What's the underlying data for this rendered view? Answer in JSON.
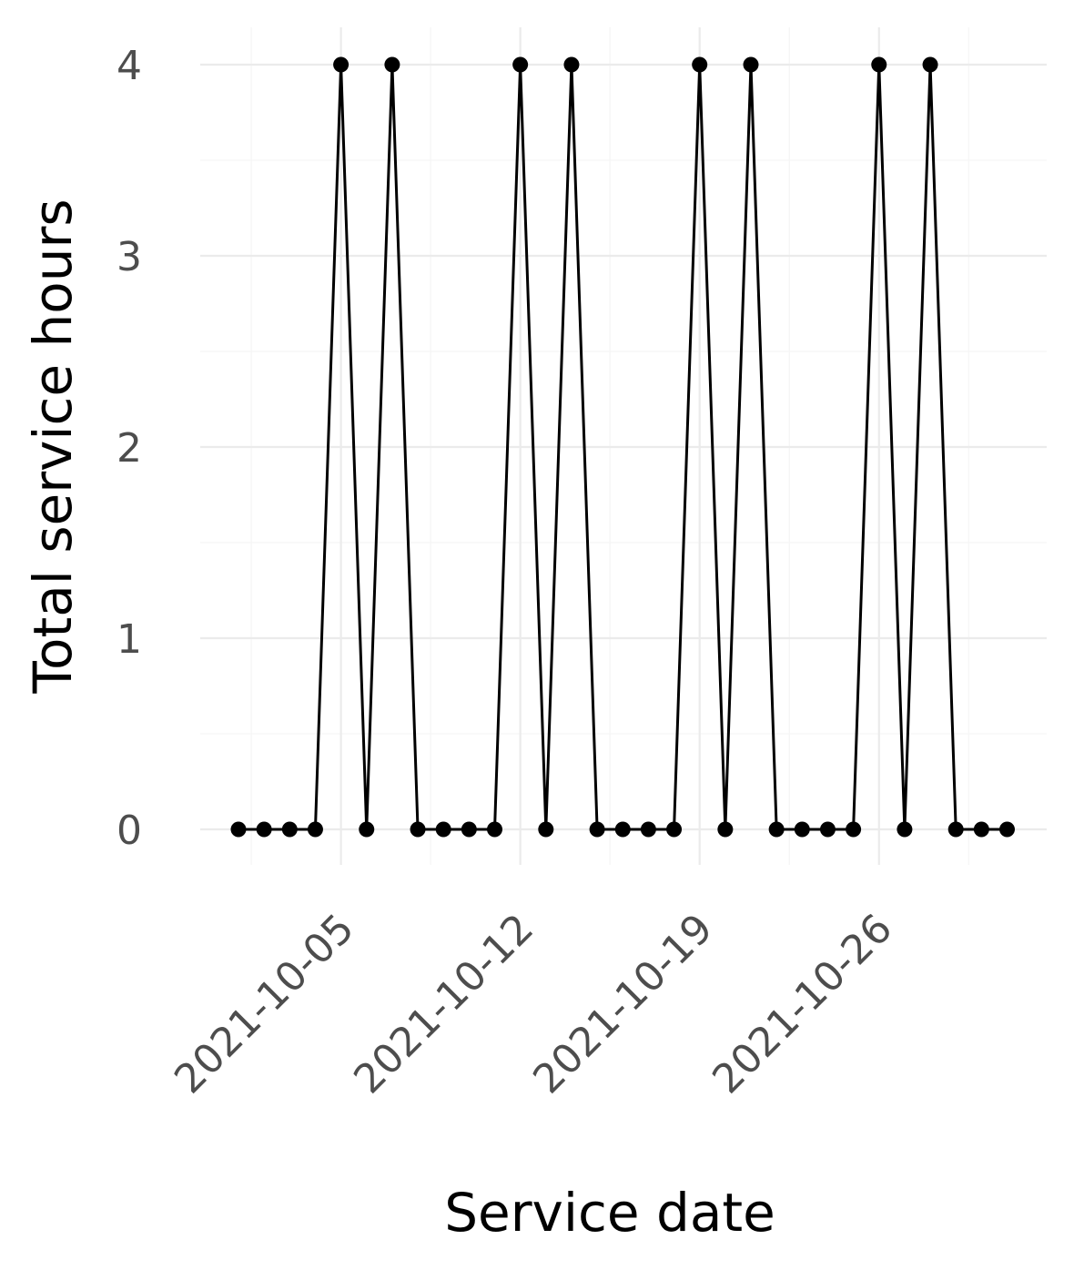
{
  "chart_data": {
    "type": "line",
    "xlabel": "Service date",
    "ylabel": "Total service hours",
    "x": [
      "2021-10-01",
      "2021-10-02",
      "2021-10-03",
      "2021-10-04",
      "2021-10-05",
      "2021-10-06",
      "2021-10-07",
      "2021-10-08",
      "2021-10-09",
      "2021-10-10",
      "2021-10-11",
      "2021-10-12",
      "2021-10-13",
      "2021-10-14",
      "2021-10-15",
      "2021-10-16",
      "2021-10-17",
      "2021-10-18",
      "2021-10-19",
      "2021-10-20",
      "2021-10-21",
      "2021-10-22",
      "2021-10-23",
      "2021-10-24",
      "2021-10-25",
      "2021-10-26",
      "2021-10-27",
      "2021-10-28",
      "2021-10-29",
      "2021-10-30",
      "2021-10-31"
    ],
    "series": [
      {
        "values": [
          0,
          0,
          0,
          0,
          4,
          0,
          4,
          0,
          0,
          0,
          0,
          4,
          0,
          4,
          0,
          0,
          0,
          0,
          4,
          0,
          4,
          0,
          0,
          0,
          0,
          4,
          0,
          4,
          0,
          0,
          0
        ]
      }
    ],
    "x_ticks": [
      "2021-10-05",
      "2021-10-12",
      "2021-10-19",
      "2021-10-26"
    ],
    "y_ticks": [
      "0",
      "1",
      "2",
      "3",
      "4"
    ],
    "ylim": [
      0,
      4
    ],
    "grid": true,
    "legend": "none",
    "colors": {
      "series": "#000000",
      "grid": "#ebebeb",
      "tick_text": "#4d4d4d"
    }
  }
}
